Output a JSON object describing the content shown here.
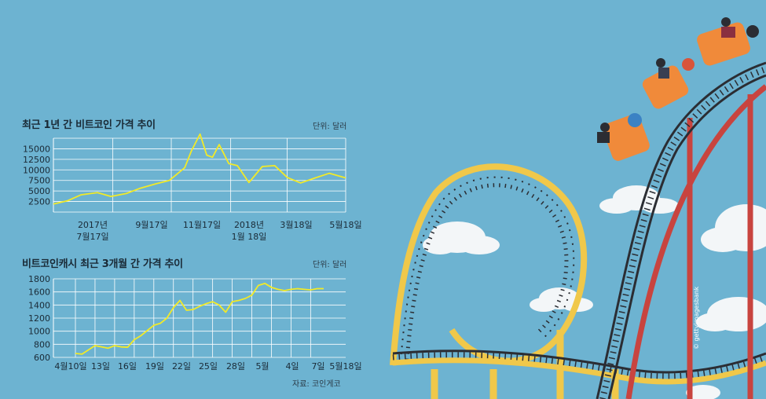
{
  "chart_data": [
    {
      "type": "line",
      "title": "최근 1년 간 비트코인 가격 추이",
      "unit": "단위: 달러",
      "y_ticks": [
        "15000",
        "12500",
        "10000",
        "7500",
        "5000",
        "2500"
      ],
      "x_ticks": [
        "2017년\n7월17일",
        "9월17일",
        "11월17일",
        "2018년\n1월 18일",
        "3월18일",
        "5월18일"
      ],
      "ylim": [
        0,
        17500
      ],
      "grid": true,
      "series": [
        {
          "x": [
            "2017-07-17",
            "2017-08-01",
            "2017-08-15",
            "2017-09-01",
            "2017-09-15",
            "2017-10-01",
            "2017-10-15",
            "2017-11-01",
            "2017-11-15",
            "2017-12-01",
            "2017-12-08",
            "2017-12-17",
            "2017-12-24",
            "2017-12-30",
            "2018-01-06",
            "2018-01-16",
            "2018-01-25",
            "2018-02-06",
            "2018-02-20",
            "2018-03-05",
            "2018-03-18",
            "2018-04-01",
            "2018-04-15",
            "2018-05-01",
            "2018-05-18"
          ],
          "values": [
            1900,
            2700,
            4100,
            4600,
            3700,
            4400,
            5600,
            6700,
            7500,
            10500,
            14500,
            18500,
            13500,
            13000,
            16000,
            11500,
            11000,
            7000,
            10800,
            11000,
            8200,
            6900,
            8000,
            9200,
            8100
          ]
        }
      ]
    },
    {
      "type": "line",
      "title": "비트코인캐시 최근 3개월 간 가격 추이",
      "unit": "단위: 달러",
      "source": "자료: 코인게코",
      "y_ticks": [
        "1800",
        "1600",
        "1400",
        "1200",
        "1000",
        "800",
        "600"
      ],
      "x_ticks": [
        "4월10일",
        "13일",
        "16일",
        "19일",
        "22일",
        "25일",
        "28일",
        "5월",
        "4일",
        "7일",
        "5월18일"
      ],
      "ylim": [
        600,
        1800
      ],
      "grid": true,
      "series": [
        {
          "x": [
            "04-10",
            "04-11",
            "04-13",
            "04-14",
            "04-15",
            "04-16",
            "04-17",
            "04-18",
            "04-19",
            "04-20",
            "04-21",
            "04-22",
            "04-23",
            "04-24",
            "04-25",
            "04-26",
            "04-27",
            "04-28",
            "04-29",
            "04-30",
            "05-01",
            "05-02",
            "05-03",
            "05-04",
            "05-05",
            "05-06",
            "05-07",
            "05-08",
            "05-09",
            "05-10",
            "05-11",
            "05-12",
            "05-13",
            "05-14",
            "05-15",
            "05-16",
            "05-17",
            "05-18"
          ],
          "values": [
            660,
            650,
            780,
            760,
            740,
            780,
            760,
            755,
            870,
            930,
            1010,
            1090,
            1120,
            1200,
            1360,
            1470,
            1320,
            1330,
            1380,
            1420,
            1450,
            1400,
            1290,
            1450,
            1470,
            1500,
            1550,
            1700,
            1730,
            1670,
            1640,
            1620,
            1640,
            1650,
            1640,
            1630,
            1650,
            1650
          ]
        }
      ]
    }
  ],
  "illustration": {
    "credit": "© gettyimagesbank"
  },
  "colors": {
    "background": "#6db3d1",
    "line": "#f2ea27",
    "grid": "#ffffff",
    "track_yellow": "#f0c84a",
    "track_red": "#c8443f",
    "cart_orange": "#f08a3a"
  }
}
